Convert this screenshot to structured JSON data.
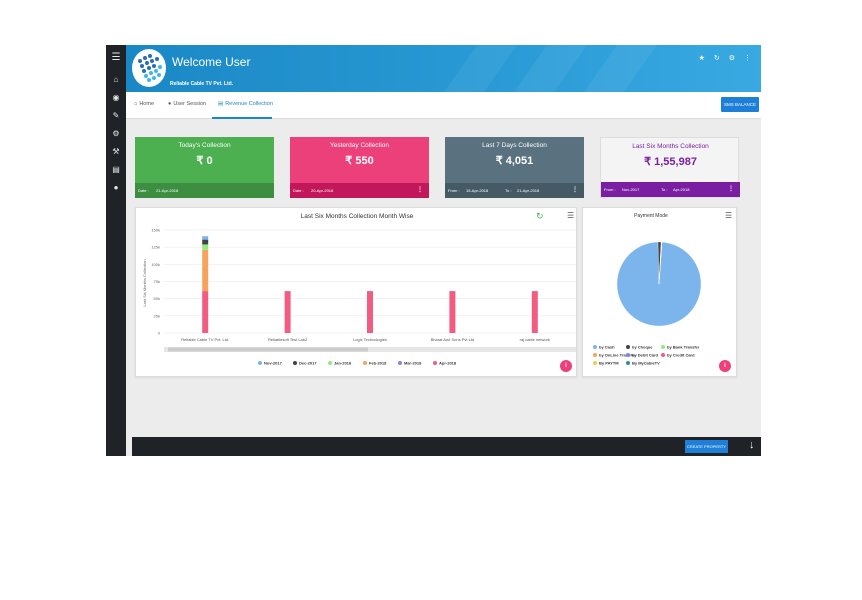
{
  "header": {
    "title": "Welcome User",
    "company": "Reliable Cable TV Pvt. Ltd."
  },
  "sidebar": {
    "icons": [
      "menu-icon",
      "home-icon",
      "globe-icon",
      "chat-icon",
      "gear-icon",
      "wrench-icon",
      "document-icon",
      "user-icon"
    ]
  },
  "tabs": [
    {
      "label": "Home",
      "icon": "home-icon"
    },
    {
      "label": "User Session",
      "icon": "users-icon"
    },
    {
      "label": "Revenue Collection",
      "icon": "bank-icon",
      "active": true
    }
  ],
  "sms_button": "SMS BALANCE",
  "cards": [
    {
      "title": "Today's Collection",
      "value": "₹ 0",
      "foot_left": "Date :",
      "foot_left_val": "21-Apr-2018",
      "foot_right": "",
      "foot_right_val": "",
      "color": "#4caf50",
      "foot_color": "#3e8e41"
    },
    {
      "title": "Yesterday Collection",
      "value": "₹ 550",
      "foot_left": "Date :",
      "foot_left_val": "20-Apr-2018",
      "foot_right": "",
      "foot_right_val": "",
      "color": "#ec407a",
      "foot_color": "#c2185b"
    },
    {
      "title": "Last 7 Days Collection",
      "value": "₹ 4,051",
      "foot_left": "From :",
      "foot_left_val": "15-Apr-2018",
      "foot_right": "To :",
      "foot_right_val": "21-Apr-2018",
      "color": "#5a7280",
      "foot_color": "#455a64"
    },
    {
      "title": "Last Six Months Collection",
      "value": "₹ 1,55,987",
      "foot_left": "From :",
      "foot_left_val": "Nov-2017",
      "foot_right": "To :",
      "foot_right_val": "Apr-2018",
      "color": "#f4f4f4",
      "foot_color": "#7b1fa2"
    }
  ],
  "chart_data": [
    {
      "type": "bar",
      "title": "Last Six Months Collection Month Wise",
      "ylabel": "Last Six Months Collection",
      "xlabel": "",
      "ylim": [
        0,
        150000
      ],
      "yticks": [
        "0",
        "25k",
        "50k",
        "75k",
        "100k",
        "125k",
        "150k"
      ],
      "categories": [
        "Reliable Cable TV Pvt. Ltd.",
        "Reliablesoft Test Lab2",
        "Logix Technologies",
        "Bharat And Sons Pvt Ltd",
        "raj cable network"
      ],
      "stacked": true,
      "grid": true,
      "legend": "bottom",
      "series": [
        {
          "name": "Nov-2017",
          "color": "#7cb5ec",
          "values": [
            5000,
            0,
            0,
            0,
            0
          ]
        },
        {
          "name": "Dec-2017",
          "color": "#434348",
          "values": [
            7000,
            0,
            0,
            0,
            0
          ]
        },
        {
          "name": "Jan-2018",
          "color": "#90ed7d",
          "values": [
            8000,
            0,
            0,
            0,
            0
          ]
        },
        {
          "name": "Feb-2018",
          "color": "#f7a35c",
          "values": [
            60000,
            0,
            0,
            0,
            0
          ]
        },
        {
          "name": "Mar-2018",
          "color": "#8085e9",
          "values": [
            0,
            0,
            0,
            0,
            0
          ]
        },
        {
          "name": "Apr-2018",
          "color": "#f15c80",
          "values": [
            61000,
            61000,
            61000,
            61000,
            61000
          ]
        }
      ]
    },
    {
      "type": "pie",
      "title": "Payment Mode",
      "legend": "bottom",
      "slices": [
        {
          "name": "by Cash",
          "color": "#7cb5ec",
          "value": 98.5
        },
        {
          "name": "by Cheque",
          "color": "#434348",
          "value": 1.2
        },
        {
          "name": "by Bank Transfer",
          "color": "#90ed7d",
          "value": 0.1
        },
        {
          "name": "by OnLine Transfer",
          "color": "#f7a35c",
          "value": 0.05
        },
        {
          "name": "by Debit Card",
          "color": "#8085e9",
          "value": 0.05
        },
        {
          "name": "by Credit Card",
          "color": "#f15c80",
          "value": 0.05
        },
        {
          "name": "By PAYTM",
          "color": "#e4d354",
          "value": 0.025
        },
        {
          "name": "By MyCableTV",
          "color": "#2b908f",
          "value": 0.025
        }
      ]
    }
  ],
  "bottom": {
    "create_label": "CREATE PROPERTY"
  }
}
